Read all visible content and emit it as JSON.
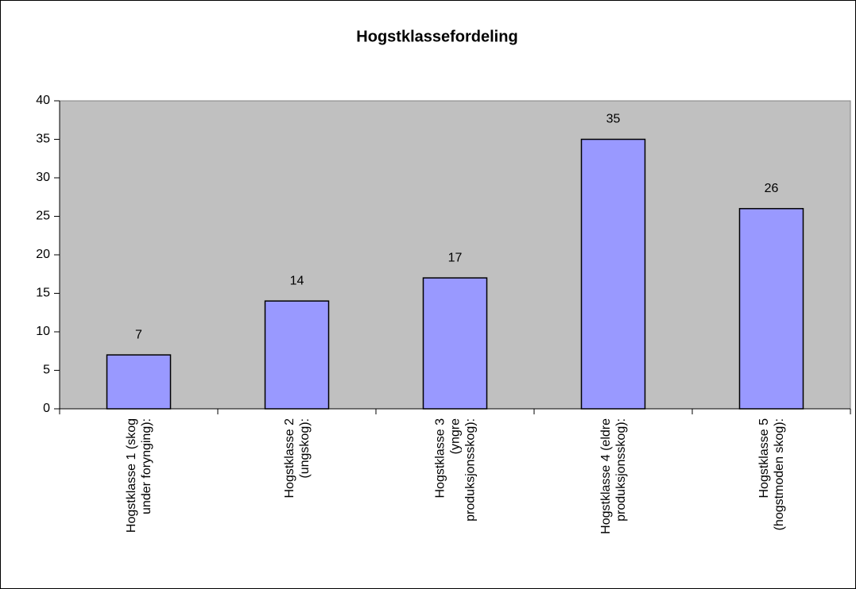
{
  "chart_data": {
    "type": "bar",
    "title": "Hogstklassefordeling",
    "categories": [
      "Hogstklasse 1 (skog under forynging):",
      "Hogstklasse 2 (ungskog):",
      "Hogstklasse 3 (yngre produksjonsskog):",
      "Hogstklasse 4 (eldre produksjonsskog):",
      "Hogstklasse 5 (hogstmoden skog):"
    ],
    "values": [
      7,
      14,
      17,
      35,
      26
    ],
    "color": "#9999ff",
    "background": "#c0c0c0",
    "ylim": [
      0,
      40
    ],
    "yticks": [
      0,
      5,
      10,
      15,
      20,
      25,
      30,
      35,
      40
    ],
    "grid": false
  }
}
